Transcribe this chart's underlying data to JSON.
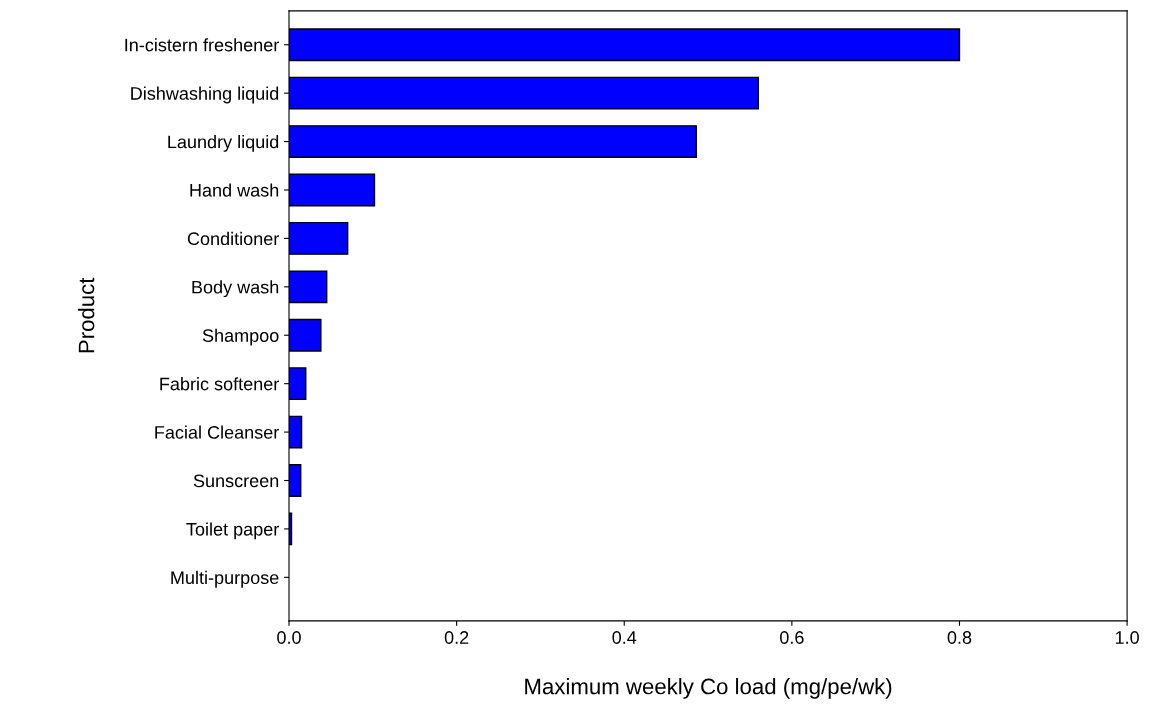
{
  "chart_data": {
    "type": "bar",
    "orientation": "horizontal",
    "xlabel": "Maximum weekly Co load (mg/pe/wk)",
    "ylabel": "Product",
    "categories": [
      "In-cistern freshener",
      "Dishwashing liquid",
      "Laundry liquid",
      "Hand wash",
      "Conditioner",
      "Body wash",
      "Shampoo",
      "Fabric softener",
      "Facial Cleanser",
      "Sunscreen",
      "Toilet paper",
      "Multi-purpose"
    ],
    "values": [
      0.8,
      0.56,
      0.486,
      0.102,
      0.07,
      0.045,
      0.038,
      0.02,
      0.015,
      0.014,
      0.003,
      0
    ],
    "color": "#0000ff",
    "xlim": [
      0,
      1.0
    ],
    "xticks": [
      {
        "value": 0,
        "label": "0.0"
      },
      0.2,
      0.4,
      0.6,
      0.8,
      {
        "value": 1.0,
        "label": "1.0"
      }
    ],
    "grid": false,
    "legend": false
  }
}
